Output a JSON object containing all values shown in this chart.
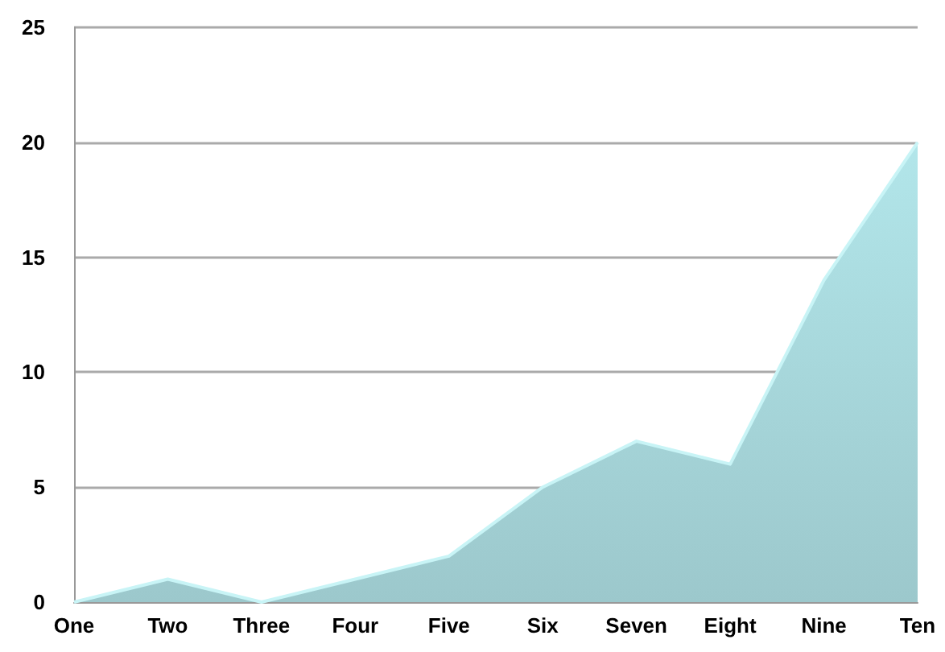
{
  "chart_data": {
    "type": "area",
    "categories": [
      "One",
      "Two",
      "Three",
      "Four",
      "Five",
      "Six",
      "Seven",
      "Eight",
      "Nine",
      "Ten"
    ],
    "series": [
      {
        "color": "#9cc8cc",
        "values": [
          0,
          1,
          0,
          1,
          2,
          5,
          7,
          6,
          14,
          20
        ]
      }
    ],
    "ylim": [
      0,
      25
    ],
    "yticks": [
      0,
      5,
      10,
      15,
      20,
      25
    ],
    "grid": "y"
  }
}
